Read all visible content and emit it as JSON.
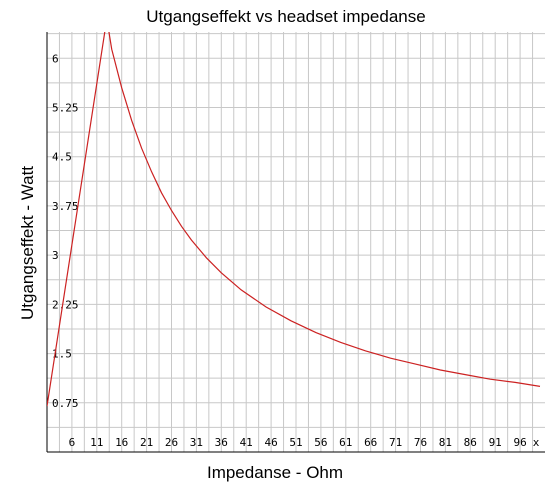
{
  "chart_data": {
    "type": "line",
    "title": "Utgangseffekt vs headset impedanse",
    "xlabel": "Impedanse - Ohm",
    "ylabel": "Utgangseffekt - Watt",
    "x_axis_end_marker": "x",
    "xlim": [
      1,
      101
    ],
    "ylim": [
      0,
      6.4
    ],
    "x_ticks": [
      6,
      11,
      16,
      21,
      26,
      31,
      36,
      41,
      46,
      51,
      56,
      61,
      66,
      71,
      76,
      81,
      86,
      91,
      96
    ],
    "y_ticks": [
      "0.75",
      "1.5",
      "2.25",
      "3",
      "3.75",
      "4.5",
      "5.25",
      "6"
    ],
    "grid": true,
    "series": [
      {
        "color": "#cc2222",
        "x": [
          1,
          13,
          14,
          16,
          18,
          20,
          22,
          24,
          26,
          28,
          30,
          33,
          36,
          40,
          45,
          50,
          55,
          60,
          65,
          70,
          75,
          80,
          85,
          90,
          95,
          100
        ],
        "y": [
          0.7,
          6.6,
          6.14,
          5.55,
          5.05,
          4.63,
          4.27,
          3.95,
          3.68,
          3.44,
          3.23,
          2.96,
          2.73,
          2.47,
          2.21,
          2.0,
          1.82,
          1.67,
          1.54,
          1.43,
          1.34,
          1.25,
          1.18,
          1.11,
          1.06,
          1.0
        ]
      }
    ]
  }
}
